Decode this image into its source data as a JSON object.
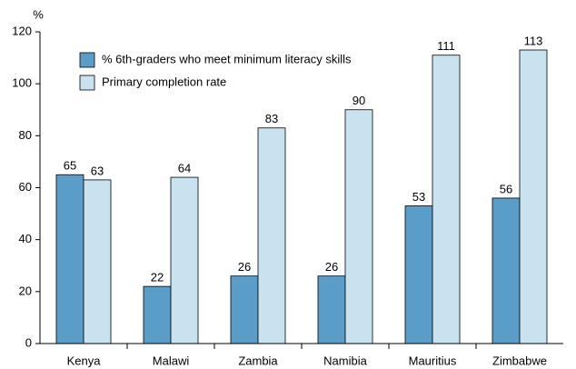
{
  "chart_data": {
    "type": "bar",
    "y_label": "%",
    "categories": [
      "Kenya",
      "Malawi",
      "Zambia",
      "Namibia",
      "Mauritius",
      "Zimbabwe"
    ],
    "series": [
      {
        "name": "% 6th-graders who meet minimum literacy skills",
        "color": "#5b9dc9",
        "values": [
          65,
          22,
          26,
          26,
          53,
          56
        ]
      },
      {
        "name": "Primary completion rate",
        "color": "#c9e2ef",
        "values": [
          63,
          64,
          83,
          90,
          111,
          113
        ]
      }
    ],
    "ylim": [
      0,
      120
    ],
    "yticks": [
      0,
      20,
      40,
      60,
      80,
      100,
      120
    ],
    "grid": false,
    "legend": "upper left"
  }
}
